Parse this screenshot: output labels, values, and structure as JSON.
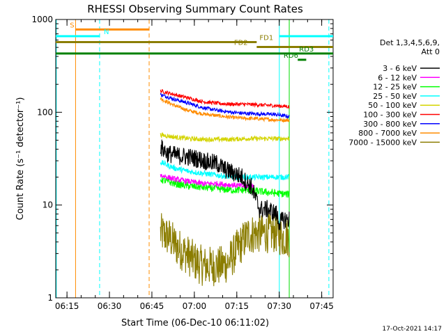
{
  "chart_data": {
    "type": "line",
    "title": "RHESSI Observing Summary Count Rates",
    "xlabel": "Start Time (06-Dec-10 06:11:02)",
    "ylabel": "Count Rate (s⁻¹ detector⁻¹)",
    "x_unit": "minutes after 06:11:02",
    "xlim": [
      0,
      98
    ],
    "ylim": [
      1,
      1000
    ],
    "yscale": "log",
    "x_ticks": [
      {
        "label": "06:15",
        "value": 3.97
      },
      {
        "label": "06:30",
        "value": 18.97
      },
      {
        "label": "06:45",
        "value": 33.97
      },
      {
        "label": "07:00",
        "value": 48.97
      },
      {
        "label": "07:15",
        "value": 63.97
      },
      {
        "label": "07:30",
        "value": 78.97
      },
      {
        "label": "07:45",
        "value": 93.97
      }
    ],
    "y_ticks": [
      {
        "label": "1",
        "value": 1
      },
      {
        "label": "10",
        "value": 10
      },
      {
        "label": "100",
        "value": 100
      },
      {
        "label": "1000",
        "value": 1000
      }
    ],
    "legend": {
      "placement": "right",
      "header": [
        "Det 1,3,4,5,6,9,",
        "Att 0"
      ]
    },
    "series": [
      {
        "name": "3 - 6 keV",
        "color": "#000000",
        "noise": 0.1,
        "x": [
          37.0,
          39.5,
          43.0,
          47.0,
          51.0,
          54.0,
          57.0,
          60.0,
          63.0,
          66.0,
          67.0,
          69.0,
          71.0,
          72.0,
          75.0,
          78.0,
          79.0,
          81.0,
          82.5
        ],
        "y": [
          42,
          36,
          34,
          33,
          31,
          29,
          28,
          24,
          22,
          20,
          18,
          16,
          11,
          9,
          9,
          8,
          6.5,
          7,
          7
        ]
      },
      {
        "name": "6 - 12 keV",
        "color": "#ff00ff",
        "noise": 0.03,
        "x": [
          37.0,
          42.0,
          47.0,
          52.0,
          57.0,
          62.0,
          66.0,
          70.0
        ],
        "y": [
          21,
          19,
          18,
          17,
          17,
          16.5,
          16,
          16
        ]
      },
      {
        "name": "12 - 25 keV",
        "color": "#00ff00",
        "noise": 0.04,
        "x": [
          37.0,
          42.0,
          47.0,
          52.0,
          57.0,
          62.0,
          67.0,
          72.0,
          77.0,
          82.5
        ],
        "y": [
          19,
          17,
          16,
          15.5,
          15,
          14.5,
          14.5,
          14,
          13.5,
          13
        ]
      },
      {
        "name": "25 - 50 keV",
        "color": "#00ffff",
        "noise": 0.03,
        "x": [
          37.0,
          42.0,
          47.0,
          52.0,
          57.0,
          62.0,
          67.0,
          72.0,
          77.0,
          82.5
        ],
        "y": [
          29,
          25,
          23,
          22,
          21,
          20,
          20,
          20,
          20,
          20
        ]
      },
      {
        "name": "50 - 100 keV",
        "color": "#d4d400",
        "noise": 0.025,
        "x": [
          37.0,
          42.0,
          47.0,
          52.0,
          57.0,
          62.0,
          67.0,
          72.0,
          77.0,
          82.5
        ],
        "y": [
          57,
          54,
          52,
          51,
          51,
          51,
          52,
          52,
          52,
          52
        ]
      },
      {
        "name": "100 - 300 keV",
        "color": "#ff0000",
        "noise": 0.02,
        "x": [
          37.0,
          42.0,
          47.0,
          52.0,
          57.0,
          62.0,
          67.0,
          72.0,
          77.0,
          82.5
        ],
        "y": [
          170,
          155,
          142,
          130,
          125,
          122,
          122,
          120,
          118,
          115
        ]
      },
      {
        "name": "300 - 800 keV",
        "color": "#0000ff",
        "noise": 0.02,
        "x": [
          37.0,
          42.0,
          47.0,
          52.0,
          57.0,
          62.0,
          67.0,
          72.0,
          77.0,
          82.5
        ],
        "y": [
          155,
          138,
          125,
          112,
          105,
          100,
          97,
          96,
          95,
          90
        ]
      },
      {
        "name": "800 - 7000 keV",
        "color": "#ff8c00",
        "noise": 0.02,
        "x": [
          37.0,
          42.0,
          47.0,
          52.0,
          57.0,
          62.0,
          67.0,
          72.0,
          77.0,
          82.5
        ],
        "y": [
          140,
          118,
          104,
          96,
          92,
          88,
          86,
          85,
          83,
          82
        ]
      },
      {
        "name": "7000 - 15000 keV",
        "color": "#8b7d00",
        "noise": 0.22,
        "x": [
          37.0,
          40.0,
          43.0,
          46.0,
          49.0,
          52.0,
          55.0,
          58.0,
          61.0,
          64.0,
          66.0,
          68.0,
          72.0,
          75.0,
          78.0,
          80.0,
          82.5
        ],
        "y": [
          5.0,
          4.5,
          3.5,
          3.0,
          2.5,
          2.2,
          2.2,
          2.2,
          2.4,
          3.3,
          4.0,
          4.8,
          5.0,
          5.0,
          5.0,
          4.5,
          4.5
        ]
      }
    ],
    "vertical_lines": [
      {
        "x": 7.0,
        "color": "#ff8c00",
        "style": "solid"
      },
      {
        "x": 33.0,
        "color": "#ff8c00",
        "style": "dashed"
      },
      {
        "x": 0.2,
        "color": "#00ffff",
        "style": "solid"
      },
      {
        "x": 15.5,
        "color": "#00ffff",
        "style": "dashed"
      },
      {
        "x": 79.0,
        "color": "#00ffff",
        "style": "solid"
      },
      {
        "x": 96.5,
        "color": "#00ffff",
        "style": "dashed"
      },
      {
        "x": 82.5,
        "color": "#00dd00",
        "style": "solid"
      }
    ],
    "flag_bars": [
      {
        "label": "S",
        "color": "#ff8c00",
        "y": 780,
        "x0": 7.0,
        "x1": 33.0,
        "label_x": 5.0
      },
      {
        "label": "N",
        "color": "#00ffff",
        "y": 660,
        "x0": 0.0,
        "x1": 15.5,
        "label_x": 17.0
      },
      {
        "label": "N",
        "color": "#00ffff",
        "y": 660,
        "x0": 79.0,
        "x1": 98.0,
        "label_x": null
      },
      {
        "label": "FD1",
        "color": "#8b7d00",
        "y": 570,
        "x0": 0.0,
        "x1": 71.0,
        "label_x": 72.0
      },
      {
        "label": "FD2",
        "color": "#8b7d00",
        "y": 505,
        "x0": 71.0,
        "x1": 98.0,
        "label_x": 63.0
      },
      {
        "label": "RD3",
        "color": "#008000",
        "y": 430,
        "x0": 0.0,
        "x1": 98.0,
        "label_x": 86.0
      },
      {
        "label": "RD6",
        "color": "#008000",
        "y": 368,
        "x0": 85.5,
        "x1": 88.5,
        "label_x": 80.5
      }
    ]
  },
  "footer": {
    "timestamp": "17-Oct-2021 14:17"
  }
}
